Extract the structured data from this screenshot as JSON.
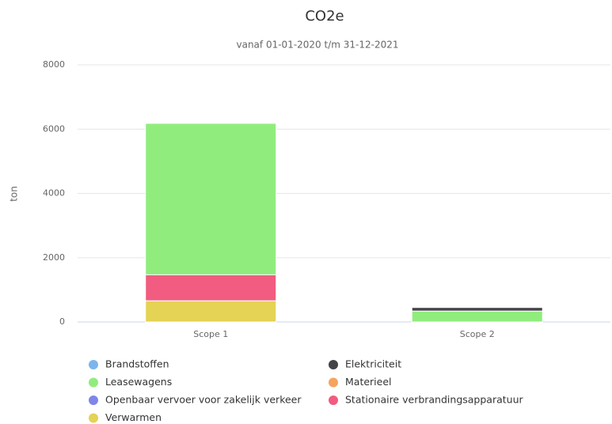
{
  "chart_data": {
    "type": "stacked-bar",
    "title": "CO2e",
    "subtitle": "vanaf 01-01-2020 t/m 31-12-2021",
    "y_label": "ton",
    "categories": [
      "Scope 1",
      "Scope 2"
    ],
    "series": [
      {
        "name": "Brandstoffen",
        "color": "#7cb5ec",
        "values": [
          0,
          0
        ]
      },
      {
        "name": "Elektriciteit",
        "color": "#434348",
        "values": [
          0,
          110
        ]
      },
      {
        "name": "Leasewagens",
        "color": "#90ed7d",
        "values": [
          4710,
          340
        ]
      },
      {
        "name": "Materieel",
        "color": "#f7a35c",
        "values": [
          0,
          0
        ]
      },
      {
        "name": "Openbaar vervoer voor zakelijk verkeer",
        "color": "#8085e9",
        "values": [
          0,
          0
        ]
      },
      {
        "name": "Stationaire verbrandingsapparatuur",
        "color": "#f15c80",
        "values": [
          810,
          0
        ]
      },
      {
        "name": "Verwarmen",
        "color": "#e4d354",
        "values": [
          660,
          0
        ]
      }
    ],
    "ylim": [
      0,
      8000
    ],
    "yticks": [
      0,
      2000,
      4000,
      6000,
      8000
    ],
    "grid": true
  }
}
